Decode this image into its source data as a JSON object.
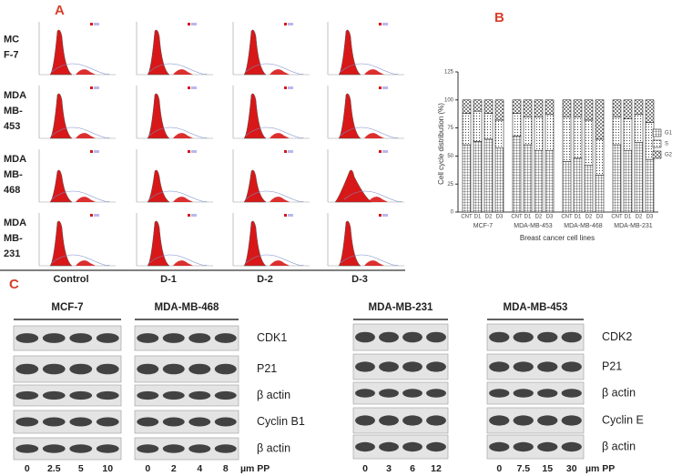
{
  "panel_a": {
    "label": "A",
    "row_labels": [
      [
        "MC",
        "F-7"
      ],
      [
        "MDA",
        "MB-",
        "453"
      ],
      [
        "MDA",
        "MB-",
        "468"
      ],
      [
        "MDA",
        "MB-",
        "231"
      ]
    ],
    "column_labels": [
      "Control",
      "D-1",
      "D-2",
      "D-3"
    ]
  },
  "chart_data": {
    "type": "bar",
    "stacked": true,
    "label": "B",
    "y_label": "Cell cycle distribution (%)",
    "x_label": "Breast cancer cell lines",
    "groups": [
      "MCF-7",
      "MDA-MB-453",
      "MDA-MB-468",
      "MDA-MB-231"
    ],
    "categories": [
      "CNT",
      "D1",
      "D2",
      "D3",
      "CNT",
      "D1",
      "D2",
      "D3",
      "CNT",
      "D1",
      "D2",
      "D3",
      "CNT",
      "D1",
      "D2",
      "D3"
    ],
    "series": [
      {
        "name": "G1",
        "color": "#000000",
        "pattern": "grid",
        "values": [
          60,
          63,
          65,
          57,
          68,
          60,
          55,
          55,
          45,
          48,
          42,
          33,
          60,
          55,
          62,
          47
        ]
      },
      {
        "name": "S",
        "color": "#000000",
        "pattern": "dots",
        "values": [
          28,
          27,
          23,
          25,
          20,
          25,
          30,
          32,
          40,
          37,
          40,
          32,
          25,
          28,
          25,
          33
        ]
      },
      {
        "name": "G2",
        "color": "#000000",
        "pattern": "crosshatch",
        "values": [
          12,
          10,
          12,
          18,
          12,
          15,
          15,
          13,
          15,
          15,
          18,
          35,
          15,
          17,
          13,
          20
        ]
      }
    ],
    "ylim": [
      0,
      125
    ],
    "yticks": [
      0,
      25,
      50,
      75,
      100,
      125
    ],
    "legend": "right"
  },
  "panel_c": {
    "label": "C",
    "unit": "µm PP",
    "left_markers": [
      "CDK1",
      "P21",
      "β actin",
      "Cyclin B1",
      "β actin"
    ],
    "right_markers": [
      "CDK2",
      "P21",
      "β actin",
      "Cyclin E",
      "β actin"
    ],
    "blots": [
      {
        "title": "MCF-7",
        "doses": [
          0,
          2.5,
          5,
          10
        ]
      },
      {
        "title": "MDA-MB-468",
        "doses": [
          0,
          2,
          4,
          8
        ]
      },
      {
        "title": "MDA-MB-231",
        "doses": [
          0,
          3,
          6,
          12
        ]
      },
      {
        "title": "MDA-MB-453",
        "doses": [
          0,
          7.5,
          15,
          30
        ]
      }
    ]
  }
}
